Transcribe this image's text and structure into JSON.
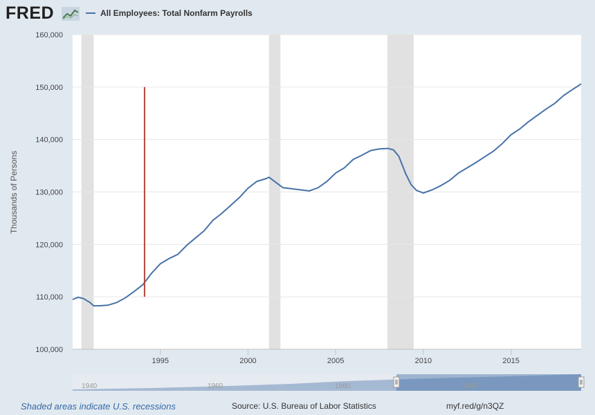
{
  "header": {
    "logo_text": "FRED",
    "series_label": "All Employees: Total Nonfarm Payrolls",
    "series_color": "#4572a7"
  },
  "footer": {
    "recession_note": "Shaded areas indicate U.S. recessions",
    "source": "Source: U.S. Bureau of Labor Statistics",
    "short_link": "myf.red/g/n3QZ"
  },
  "chart_data": {
    "type": "line",
    "title": "",
    "xlabel": "",
    "ylabel": "Thousands of Persons",
    "xlim": [
      1990.0,
      2019.0
    ],
    "ylim": [
      100000,
      160000
    ],
    "y_ticks": [
      100000,
      110000,
      120000,
      130000,
      140000,
      150000,
      160000
    ],
    "y_tick_labels": [
      "100,000",
      "110,000",
      "120,000",
      "130,000",
      "140,000",
      "150,000",
      "160,000"
    ],
    "x_ticks": [
      1995,
      2000,
      2005,
      2010,
      2015
    ],
    "x_tick_labels": [
      "1995",
      "2000",
      "2005",
      "2010",
      "2015"
    ],
    "grid": true,
    "recessions": [
      [
        1990.5,
        1991.2
      ],
      [
        2001.2,
        2001.85
      ],
      [
        2007.95,
        2009.45
      ]
    ],
    "marker": {
      "x": 1994.1,
      "y_range": [
        110000,
        150000
      ],
      "color": "#b2453b"
    },
    "series": [
      {
        "color": "#4572a7",
        "x": [
          1990.0,
          1990.3,
          1990.6,
          1991.0,
          1991.2,
          1991.5,
          1992.0,
          1992.5,
          1993.0,
          1993.5,
          1994.0,
          1994.5,
          1995.0,
          1995.5,
          1996.0,
          1996.5,
          1997.0,
          1997.5,
          1998.0,
          1998.5,
          1999.0,
          1999.5,
          2000.0,
          2000.5,
          2001.0,
          2001.2,
          2001.6,
          2002.0,
          2002.5,
          2003.0,
          2003.5,
          2004.0,
          2004.5,
          2005.0,
          2005.5,
          2006.0,
          2006.5,
          2007.0,
          2007.5,
          2008.0,
          2008.3,
          2008.6,
          2009.0,
          2009.3,
          2009.6,
          2010.0,
          2010.5,
          2011.0,
          2011.5,
          2012.0,
          2012.5,
          2013.0,
          2013.5,
          2014.0,
          2014.5,
          2015.0,
          2015.5,
          2016.0,
          2016.5,
          2017.0,
          2017.5,
          2018.0,
          2018.5,
          2019.0
        ],
        "values": [
          109500,
          109900,
          109700,
          108900,
          108300,
          108300,
          108400,
          108900,
          109800,
          111000,
          112300,
          114500,
          116300,
          117300,
          118100,
          119800,
          121200,
          122600,
          124600,
          125900,
          127400,
          128900,
          130700,
          132000,
          132500,
          132800,
          131800,
          130800,
          130600,
          130400,
          130200,
          130800,
          132000,
          133600,
          134600,
          136200,
          137000,
          137900,
          138200,
          138300,
          138000,
          136800,
          133400,
          131400,
          130300,
          129800,
          130400,
          131200,
          132200,
          133600,
          134600,
          135600,
          136700,
          137800,
          139200,
          140900,
          142000,
          143400,
          144600,
          145800,
          146900,
          148400,
          149500,
          150600
        ]
      }
    ],
    "navigator": {
      "labels": [
        "1940",
        "1960",
        "1980",
        "2000"
      ]
    }
  }
}
